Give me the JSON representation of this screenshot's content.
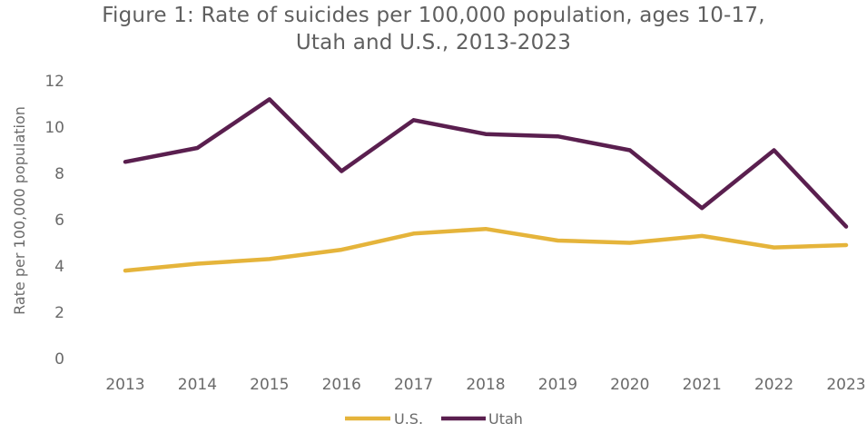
{
  "chart_data": {
    "type": "line",
    "title": "Figure 1: Rate of suicides per 100,000 population, ages 10-17,",
    "subtitle": "Utah and U.S., 2013-2023",
    "xlabel": "",
    "ylabel": "Rate per 100,000 population",
    "categories": [
      "2013",
      "2014",
      "2015",
      "2016",
      "2017",
      "2018",
      "2019",
      "2020",
      "2021",
      "2022",
      "2023"
    ],
    "ylim": [
      0,
      12
    ],
    "yticks": [
      "0",
      "2",
      "4",
      "6",
      "8",
      "10",
      "12"
    ],
    "grid": false,
    "legend_position": "bottom",
    "series": [
      {
        "name": "U.S.",
        "color": "#e5b43b",
        "values": [
          3.8,
          4.1,
          4.3,
          4.7,
          5.4,
          5.6,
          5.1,
          5.0,
          5.3,
          4.8,
          4.9
        ]
      },
      {
        "name": "Utah",
        "color": "#5a1f4f",
        "values": [
          8.5,
          9.1,
          11.2,
          8.1,
          10.3,
          9.7,
          9.6,
          9.0,
          6.5,
          9.0,
          5.7
        ]
      }
    ]
  }
}
